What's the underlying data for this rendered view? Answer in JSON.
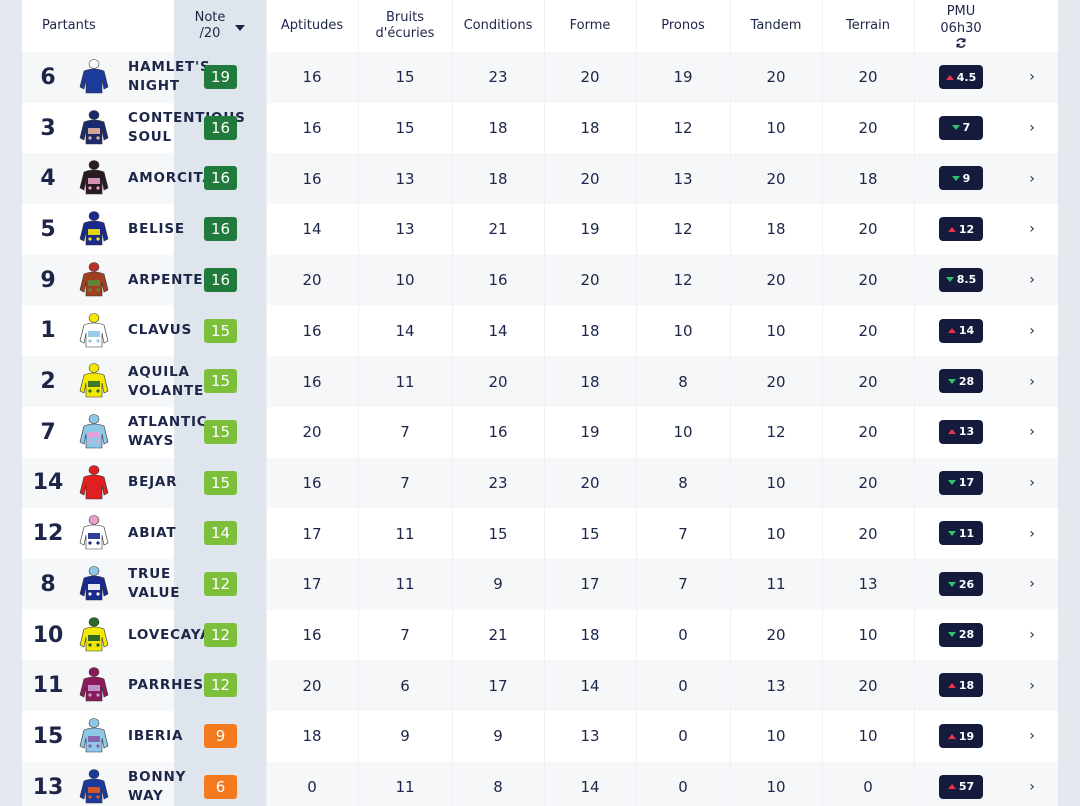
{
  "colors": {
    "note_dark_green": "#1f7a3c",
    "note_light_green": "#7cbf3a",
    "note_orange": "#f37a1f",
    "pmu_bg": "#141b3c",
    "trend_up": "#e8344c",
    "trend_down": "#2fc46b"
  },
  "header": {
    "partants": "Partants",
    "note_line1": "Note",
    "note_line2": "/20",
    "aptitudes": "Aptitudes",
    "bruits_line1": "Bruits",
    "bruits_line2": "d'écuries",
    "conditions": "Conditions",
    "forme": "Forme",
    "pronos": "Pronos",
    "tandem": "Tandem",
    "terrain": "Terrain",
    "pmu_line1": "PMU",
    "pmu_line2": "06h30",
    "refresh_icon": "refresh-icon"
  },
  "rows": [
    {
      "num": "6",
      "name": "HAMLET'S\nNIGHT",
      "silk": [
        "#1a3a9c",
        "#1a3a9c",
        "#ffffff"
      ],
      "note": "19",
      "note_color": "dark",
      "aptitudes": "16",
      "bruits": "15",
      "conditions": "23",
      "forme": "20",
      "pronos": "19",
      "tandem": "20",
      "terrain": "20",
      "pmu": "4.5",
      "trend": "up"
    },
    {
      "num": "3",
      "name": "CONTENTIOUS\nSOUL",
      "silk": [
        "#1b2a6b",
        "#e8b4a0",
        "#1b2a6b"
      ],
      "note": "16",
      "note_color": "dark",
      "aptitudes": "16",
      "bruits": "15",
      "conditions": "18",
      "forme": "18",
      "pronos": "12",
      "tandem": "10",
      "terrain": "20",
      "pmu": "7",
      "trend": "down"
    },
    {
      "num": "4",
      "name": "AMORCITA",
      "silk": [
        "#2a1a22",
        "#e8a0c8",
        "#2a1a22"
      ],
      "note": "16",
      "note_color": "dark",
      "aptitudes": "16",
      "bruits": "13",
      "conditions": "18",
      "forme": "20",
      "pronos": "13",
      "tandem": "20",
      "terrain": "18",
      "pmu": "9",
      "trend": "down"
    },
    {
      "num": "5",
      "name": "BELISE",
      "silk": [
        "#1a2a8c",
        "#f4e800",
        "#1a2a8c"
      ],
      "note": "16",
      "note_color": "dark",
      "aptitudes": "14",
      "bruits": "13",
      "conditions": "21",
      "forme": "19",
      "pronos": "12",
      "tandem": "18",
      "terrain": "20",
      "pmu": "12",
      "trend": "up"
    },
    {
      "num": "9",
      "name": "ARPENTEUR",
      "silk": [
        "#a04020",
        "#5a8a3a",
        "#c0302a"
      ],
      "note": "16",
      "note_color": "dark",
      "aptitudes": "20",
      "bruits": "10",
      "conditions": "16",
      "forme": "20",
      "pronos": "12",
      "tandem": "20",
      "terrain": "20",
      "pmu": "8.5",
      "trend": "down"
    },
    {
      "num": "1",
      "name": "CLAVUS",
      "silk": [
        "#ffffff",
        "#8ec8e8",
        "#f4e800"
      ],
      "note": "15",
      "note_color": "light",
      "aptitudes": "16",
      "bruits": "14",
      "conditions": "14",
      "forme": "18",
      "pronos": "10",
      "tandem": "10",
      "terrain": "20",
      "pmu": "14",
      "trend": "up"
    },
    {
      "num": "2",
      "name": "AQUILA\nVOLANTE",
      "silk": [
        "#f4e800",
        "#2a6a2a",
        "#f4e800"
      ],
      "note": "15",
      "note_color": "light",
      "aptitudes": "16",
      "bruits": "11",
      "conditions": "20",
      "forme": "18",
      "pronos": "8",
      "tandem": "20",
      "terrain": "20",
      "pmu": "28",
      "trend": "down"
    },
    {
      "num": "7",
      "name": "ATLANTIC\nWAYS",
      "silk": [
        "#8ec8e8",
        "#e8a0d8",
        "#8ec8e8"
      ],
      "note": "15",
      "note_color": "light",
      "aptitudes": "20",
      "bruits": "7",
      "conditions": "16",
      "forme": "19",
      "pronos": "10",
      "tandem": "12",
      "terrain": "20",
      "pmu": "13",
      "trend": "up"
    },
    {
      "num": "14",
      "name": "BEJAR",
      "silk": [
        "#e02020",
        "#e02020",
        "#e02020"
      ],
      "note": "15",
      "note_color": "light",
      "aptitudes": "16",
      "bruits": "7",
      "conditions": "23",
      "forme": "20",
      "pronos": "8",
      "tandem": "10",
      "terrain": "20",
      "pmu": "17",
      "trend": "down"
    },
    {
      "num": "12",
      "name": "ABIAT",
      "silk": [
        "#ffffff",
        "#1a2a8c",
        "#e8a0c8"
      ],
      "note": "14",
      "note_color": "light",
      "aptitudes": "17",
      "bruits": "11",
      "conditions": "15",
      "forme": "15",
      "pronos": "7",
      "tandem": "10",
      "terrain": "20",
      "pmu": "11",
      "trend": "down"
    },
    {
      "num": "8",
      "name": "TRUE\nVALUE",
      "silk": [
        "#1a2a8c",
        "#ffffff",
        "#8ec8e8"
      ],
      "note": "12",
      "note_color": "light",
      "aptitudes": "17",
      "bruits": "11",
      "conditions": "9",
      "forme": "17",
      "pronos": "7",
      "tandem": "11",
      "terrain": "13",
      "pmu": "26",
      "trend": "down"
    },
    {
      "num": "10",
      "name": "LOVECAYA",
      "silk": [
        "#f4e800",
        "#1a5a2a",
        "#2a6a2a"
      ],
      "note": "12",
      "note_color": "light",
      "aptitudes": "16",
      "bruits": "7",
      "conditions": "21",
      "forme": "18",
      "pronos": "0",
      "tandem": "20",
      "terrain": "10",
      "pmu": "28",
      "trend": "down"
    },
    {
      "num": "11",
      "name": "PARRHESIA",
      "silk": [
        "#8a1a5a",
        "#c8a0d8",
        "#8a1a5a"
      ],
      "note": "12",
      "note_color": "light",
      "aptitudes": "20",
      "bruits": "6",
      "conditions": "17",
      "forme": "14",
      "pronos": "0",
      "tandem": "13",
      "terrain": "20",
      "pmu": "18",
      "trend": "up"
    },
    {
      "num": "15",
      "name": "IBERIA",
      "silk": [
        "#8ec8e8",
        "#8a5aa8",
        "#8ec8e8"
      ],
      "note": "9",
      "note_color": "orange",
      "aptitudes": "18",
      "bruits": "9",
      "conditions": "9",
      "forme": "13",
      "pronos": "0",
      "tandem": "10",
      "terrain": "10",
      "pmu": "19",
      "trend": "up"
    },
    {
      "num": "13",
      "name": "BONNY\nWAY",
      "silk": [
        "#1a3a9c",
        "#e85a1a",
        "#1a3a9c"
      ],
      "note": "6",
      "note_color": "orange",
      "aptitudes": "0",
      "bruits": "11",
      "conditions": "8",
      "forme": "14",
      "pronos": "0",
      "tandem": "10",
      "terrain": "0",
      "pmu": "57",
      "trend": "up"
    }
  ]
}
